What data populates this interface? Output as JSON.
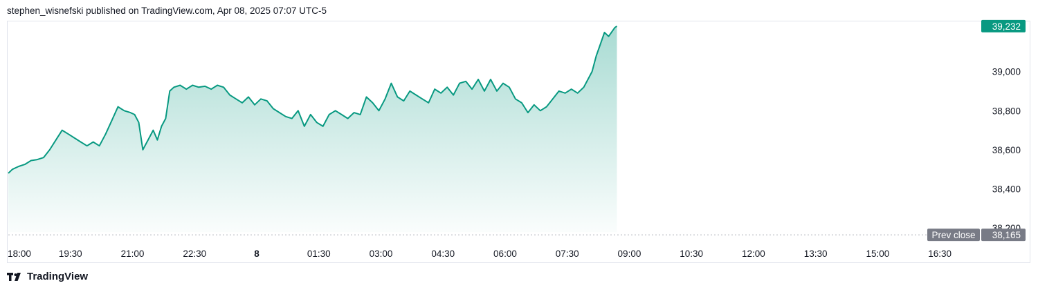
{
  "header": {
    "text": "stephen_wisnefski published on TradingView.com, Apr 08, 2025 07:07 UTC-5"
  },
  "footer": {
    "brand": "TradingView",
    "icon": "tradingview-logo-icon"
  },
  "colors": {
    "line": "#089981",
    "fill_top": "#089981",
    "price_tag": "#089981",
    "prev_close_tag": "#787b86",
    "prev_close_line": "#b2b5be"
  },
  "chart_data": {
    "type": "area",
    "x_tick_labels": [
      "18:00",
      "19:30",
      "21:00",
      "22:30",
      "8",
      "01:30",
      "03:00",
      "04:30",
      "06:00",
      "07:30",
      "09:00",
      "10:30",
      "12:00",
      "13:30",
      "15:00",
      "16:30"
    ],
    "x_tick_bold": [
      "8"
    ],
    "y_tick_labels": [
      "39,000",
      "38,800",
      "38,600",
      "38,400",
      "38,200"
    ],
    "y_ticks": [
      39000,
      38800,
      38600,
      38400,
      38200
    ],
    "ylim": [
      38130,
      39260
    ],
    "xlim_hours": [
      0,
      23.5
    ],
    "last_price_label": "39,232",
    "last_price": 39232,
    "prev_close_label": "Prev close",
    "prev_close_value_label": "38,165",
    "prev_close": 38165,
    "series": [
      {
        "x_hours": [
          0,
          0.1,
          0.25,
          0.4,
          0.55,
          0.7,
          0.85,
          1.0,
          1.15,
          1.3,
          1.45,
          1.6,
          1.75,
          1.9,
          2.05,
          2.2,
          2.35,
          2.5,
          2.65,
          2.8,
          2.95,
          3.05,
          3.15,
          3.25,
          3.35,
          3.5,
          3.6,
          3.7,
          3.8,
          3.9,
          4.0,
          4.15,
          4.3,
          4.45,
          4.6,
          4.75,
          4.9,
          5.05,
          5.2,
          5.35,
          5.5,
          5.65,
          5.8,
          5.95,
          6.1,
          6.25,
          6.4,
          6.55,
          6.7,
          6.85,
          7.0,
          7.15,
          7.3,
          7.45,
          7.6,
          7.75,
          7.9,
          8.05,
          8.2,
          8.35,
          8.5,
          8.65,
          8.8,
          8.95,
          9.1,
          9.25,
          9.4,
          9.55,
          9.7,
          9.85,
          10.0,
          10.15,
          10.3,
          10.45,
          10.6,
          10.75,
          10.9,
          11.05,
          11.2,
          11.35,
          11.5,
          11.65,
          11.8,
          11.95,
          12.1,
          12.25,
          12.4,
          12.55,
          12.7,
          12.85,
          13.0,
          13.15,
          13.3,
          13.45,
          13.6,
          13.75,
          13.9,
          14.0,
          14.1,
          14.2,
          14.3,
          14.4,
          14.5,
          14.6,
          14.65,
          14.7
        ],
        "y": [
          38480,
          38500,
          38515,
          38525,
          38545,
          38550,
          38560,
          38600,
          38650,
          38700,
          38680,
          38660,
          38640,
          38620,
          38640,
          38620,
          38680,
          38750,
          38820,
          38800,
          38790,
          38780,
          38740,
          38600,
          38640,
          38700,
          38650,
          38720,
          38760,
          38900,
          38920,
          38930,
          38910,
          38930,
          38920,
          38925,
          38910,
          38930,
          38920,
          38880,
          38860,
          38840,
          38870,
          38830,
          38860,
          38850,
          38810,
          38790,
          38770,
          38760,
          38800,
          38720,
          38780,
          38740,
          38720,
          38780,
          38800,
          38780,
          38760,
          38790,
          38780,
          38870,
          38840,
          38800,
          38860,
          38940,
          38870,
          38850,
          38900,
          38880,
          38860,
          38840,
          38910,
          38890,
          38920,
          38880,
          38940,
          38950,
          38910,
          38960,
          38900,
          38960,
          38900,
          38940,
          38920,
          38860,
          38840,
          38790,
          38830,
          38800,
          38820,
          38860,
          38900,
          38890,
          38910,
          38890,
          38920,
          38960,
          39000,
          39080,
          39140,
          39200,
          39180,
          39210,
          39225,
          39232
        ]
      }
    ]
  }
}
